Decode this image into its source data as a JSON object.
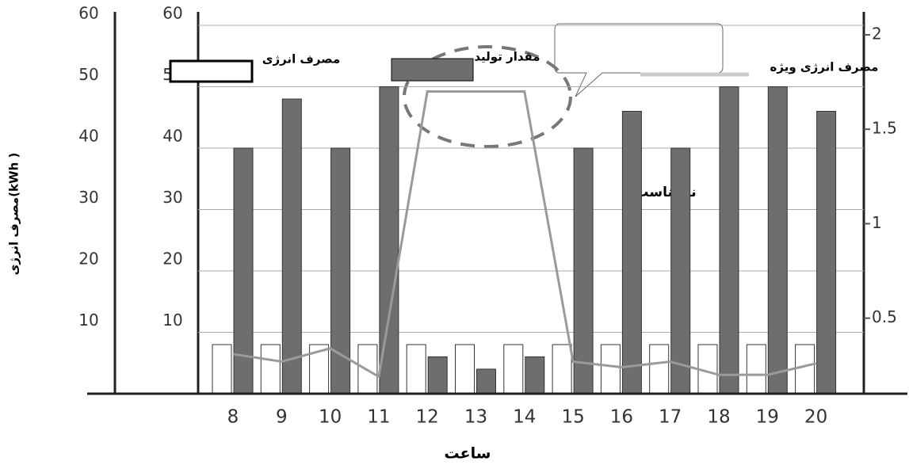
{
  "chart_data": {
    "type": "bar",
    "x_label": "ساعت",
    "y_label": "مصرف انرژی(kWh )",
    "annotation": "نا مناسب",
    "categories": [
      "8",
      "9",
      "10",
      "11",
      "12",
      "13",
      "14",
      "15",
      "16",
      "17",
      "18",
      "19",
      "20"
    ],
    "series": [
      {
        "name": "مصرف انرژی",
        "color": "#ffffff",
        "values": [
          8,
          8,
          8,
          8,
          8,
          8,
          8,
          8,
          8,
          8,
          8,
          8,
          8
        ]
      },
      {
        "name": "مقدار تولید",
        "color": "#6e6e6e",
        "values": [
          40,
          48,
          40,
          50,
          6,
          4,
          6,
          40,
          46,
          40,
          50,
          50,
          46
        ]
      },
      {
        "name": "مصرف انرژی ویژه",
        "color": "#9a9a9a",
        "type": "line",
        "axis": "y2",
        "values": [
          0.31,
          0.27,
          0.34,
          0.19,
          1.7,
          1.7,
          1.7,
          0.27,
          0.24,
          0.27,
          0.2,
          0.2,
          0.26
        ]
      }
    ],
    "ylim": [
      0,
      60
    ],
    "yticks": [
      10,
      20,
      30,
      40,
      50,
      60
    ],
    "y2lim": [
      0.1,
      2.05
    ],
    "y2ticks": [
      0.5,
      1,
      1.5,
      2
    ],
    "grid": true
  }
}
